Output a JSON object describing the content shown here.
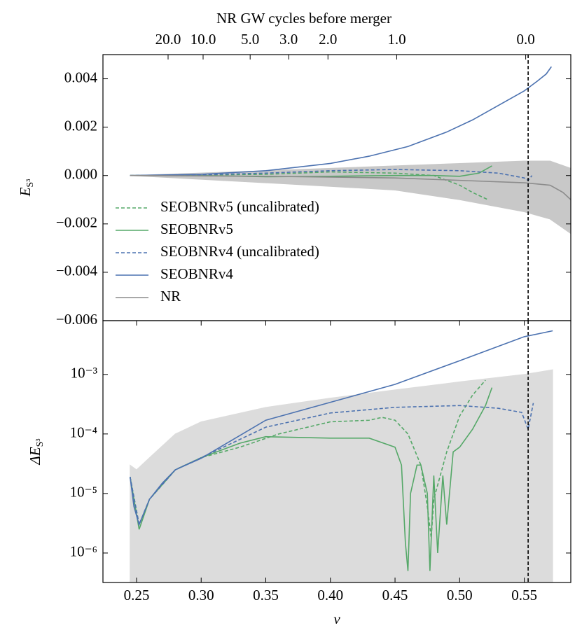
{
  "chart_data": [
    {
      "type": "line",
      "xlim": [
        0.224,
        0.586
      ],
      "ylim": [
        -0.006,
        0.005
      ],
      "log": false,
      "yticks": [
        {
          "value": 0.004,
          "label": "0.004"
        },
        {
          "value": 0.002,
          "label": "0.002"
        },
        {
          "value": 0,
          "label": "0.000"
        },
        {
          "value": -0.002,
          "label": "−0.002"
        },
        {
          "value": -0.004,
          "label": "−0.004"
        },
        {
          "value": -0.006,
          "label": "−0.006"
        }
      ],
      "ylabel": {
        "main": "E",
        "subscript": "S³"
      },
      "top_axis": {
        "label": "NR GW cycles before merger",
        "ticks": [
          {
            "value": 0.2744,
            "label": "20.0"
          },
          {
            "value": 0.3015,
            "label": "10.0"
          },
          {
            "value": 0.3379,
            "label": "5.0"
          },
          {
            "value": 0.3677,
            "label": "3.0"
          },
          {
            "value": 0.3981,
            "label": "2.0"
          },
          {
            "value": 0.4513,
            "label": "1.0"
          },
          {
            "value": 0.5511,
            "label": "0.0"
          }
        ]
      },
      "vline": 0.553,
      "legend": "lower left",
      "band": {
        "color": "#c8c8c8",
        "x": [
          0.245,
          0.35,
          0.45,
          0.5,
          0.55,
          0.57,
          0.586
        ],
        "upper": [
          0,
          0.0002,
          0.0004,
          0.0005,
          0.0006,
          0.0006,
          0.0003
        ],
        "lower": [
          0,
          -0.0003,
          -0.0006,
          -0.001,
          -0.0015,
          -0.0018,
          -0.0024
        ]
      },
      "series": [
        {
          "name": "SEOBNRv5 (uncalibrated)",
          "color": "#55a868",
          "dashed": true,
          "x": [
            0.245,
            0.35,
            0.4,
            0.45,
            0.48,
            0.5,
            0.51,
            0.522
          ],
          "values": [
            0,
            5e-05,
            0.00015,
            0.0001,
            0,
            -0.0004,
            -0.0007,
            -0.001
          ]
        },
        {
          "name": "SEOBNRv5",
          "color": "#55a868",
          "dashed": false,
          "x": [
            0.245,
            0.3,
            0.35,
            0.4,
            0.45,
            0.48,
            0.5,
            0.515,
            0.525
          ],
          "values": [
            0,
            0,
            -5e-05,
            -3e-05,
            0,
            0,
            -3e-05,
            0.0001,
            0.0004
          ]
        },
        {
          "name": "SEOBNRv4 (uncalibrated)",
          "color": "#4c72b0",
          "dashed": true,
          "x": [
            0.245,
            0.3,
            0.35,
            0.4,
            0.45,
            0.5,
            0.53,
            0.55,
            0.553,
            0.556
          ],
          "values": [
            0,
            3e-05,
            0.0001,
            0.0002,
            0.00025,
            0.0002,
            0.0001,
            -0.0001,
            -0.0002,
            0
          ]
        },
        {
          "name": "SEOBNRv4",
          "color": "#4c72b0",
          "dashed": false,
          "x": [
            0.245,
            0.3,
            0.35,
            0.4,
            0.43,
            0.46,
            0.49,
            0.51,
            0.53,
            0.55,
            0.56,
            0.567,
            0.571
          ],
          "values": [
            0,
            5e-05,
            0.0002,
            0.0005,
            0.0008,
            0.0012,
            0.0018,
            0.0023,
            0.0029,
            0.0035,
            0.0039,
            0.0042,
            0.0045
          ]
        },
        {
          "name": "NR",
          "color": "#8c8c8c",
          "dashed": false,
          "x": [
            0.245,
            0.35,
            0.45,
            0.5,
            0.55,
            0.57,
            0.58,
            0.586
          ],
          "values": [
            0,
            -3e-05,
            -0.0001,
            -0.0002,
            -0.0003,
            -0.0004,
            -0.0007,
            -0.001
          ]
        }
      ]
    },
    {
      "type": "line",
      "xlim": [
        0.224,
        0.586
      ],
      "ylim": [
        3.2e-07,
        0.008
      ],
      "log": true,
      "yticks": [
        {
          "value": 0.001,
          "label": "10⁻³"
        },
        {
          "value": 0.0001,
          "label": "10⁻⁴"
        },
        {
          "value": 1e-05,
          "label": "10⁻⁵"
        },
        {
          "value": 1e-06,
          "label": "10⁻⁶"
        }
      ],
      "xticks": [
        {
          "value": 0.25,
          "label": "0.25"
        },
        {
          "value": 0.3,
          "label": "0.30"
        },
        {
          "value": 0.35,
          "label": "0.35"
        },
        {
          "value": 0.4,
          "label": "0.40"
        },
        {
          "value": 0.45,
          "label": "0.45"
        },
        {
          "value": 0.5,
          "label": "0.50"
        },
        {
          "value": 0.55,
          "label": "0.55"
        }
      ],
      "xlabel": "v",
      "ylabel": {
        "main": "ΔE",
        "subscript": "S³"
      },
      "vline": 0.553,
      "band": {
        "color": "#dcdcdc",
        "x": [
          0.245,
          0.25,
          0.26,
          0.28,
          0.3,
          0.35,
          0.4,
          0.45,
          0.5,
          0.55,
          0.572
        ],
        "upper": [
          3e-05,
          2.5e-05,
          4e-05,
          0.0001,
          0.00016,
          0.00028,
          0.0004,
          0.00055,
          0.00075,
          0.001,
          0.0012
        ]
      },
      "series": [
        {
          "color": "#55a868",
          "dashed": true,
          "x": [
            0.245,
            0.252,
            0.26,
            0.28,
            0.3,
            0.33,
            0.36,
            0.4,
            0.43,
            0.44,
            0.45,
            0.46,
            0.47,
            0.475,
            0.478,
            0.48,
            0.49,
            0.5,
            0.51,
            0.52
          ],
          "values": [
            1.9e-05,
            3e-06,
            8e-06,
            2.5e-05,
            4e-05,
            6e-05,
            0.0001,
            0.00016,
            0.00017,
            0.00019,
            0.00017,
            0.0001,
            3e-05,
            6e-06,
            1.8e-06,
            8e-06,
            5e-05,
            0.0002,
            0.00045,
            0.0008
          ]
        },
        {
          "color": "#55a868",
          "dashed": false,
          "x": [
            0.245,
            0.252,
            0.26,
            0.28,
            0.3,
            0.33,
            0.35,
            0.4,
            0.43,
            0.45,
            0.455,
            0.458,
            0.46,
            0.462,
            0.467,
            0.47,
            0.475,
            0.477,
            0.48,
            0.483,
            0.487,
            0.49,
            0.495,
            0.5,
            0.51,
            0.52,
            0.525
          ],
          "values": [
            1.9e-05,
            2.5e-06,
            8e-06,
            2.5e-05,
            4e-05,
            7e-05,
            9e-05,
            8.5e-05,
            8.5e-05,
            6e-05,
            3e-05,
            1.5e-06,
            5e-07,
            1e-05,
            3e-05,
            3e-05,
            1e-05,
            5e-07,
            2e-05,
            1e-06,
            2e-05,
            3e-06,
            5e-05,
            6e-05,
            0.00012,
            0.0003,
            0.0006
          ]
        },
        {
          "color": "#4c72b0",
          "dashed": true,
          "x": [
            0.245,
            0.252,
            0.26,
            0.28,
            0.3,
            0.35,
            0.4,
            0.45,
            0.5,
            0.53,
            0.548,
            0.553,
            0.557
          ],
          "values": [
            1.9e-05,
            3e-06,
            8e-06,
            2.5e-05,
            4e-05,
            0.00013,
            0.000225,
            0.00028,
            0.0003,
            0.00027,
            0.00023,
            0.00012,
            0.00033
          ]
        },
        {
          "color": "#4c72b0",
          "dashed": false,
          "x": [
            0.245,
            0.248,
            0.252,
            0.26,
            0.27,
            0.28,
            0.3,
            0.35,
            0.4,
            0.45,
            0.5,
            0.55,
            0.572
          ],
          "values": [
            1.9e-05,
            6e-06,
            3e-06,
            8e-06,
            1.5e-05,
            2.5e-05,
            3.9e-05,
            0.00017,
            0.00034,
            0.00068,
            0.0017,
            0.0043,
            0.0054
          ]
        }
      ]
    }
  ]
}
